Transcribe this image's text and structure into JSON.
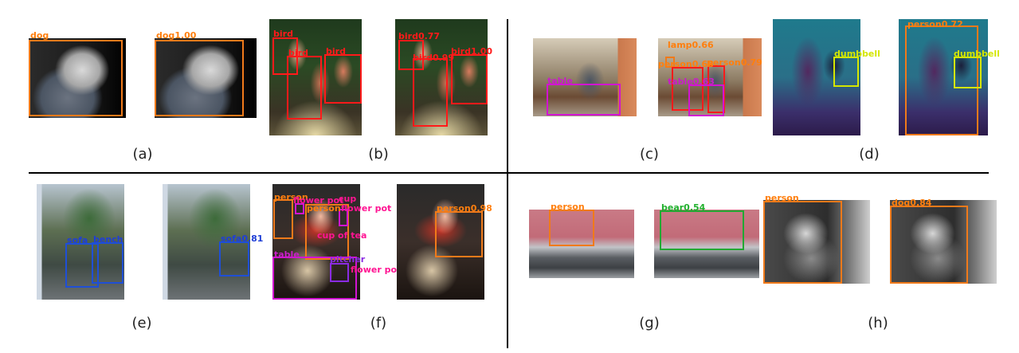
{
  "colors": {
    "orange": "#ff7f0e",
    "red": "#ff1a1a",
    "magenta": "#c81ec8",
    "pink": "#ff1493",
    "yellow": "#d4e600",
    "blue": "#1f3fd6",
    "green": "#22b02e",
    "purple": "#8a2be2",
    "boxorange": "#f07a1a",
    "boxred": "#ff1a1a",
    "boxmagenta": "#d214d2",
    "boxblue": "#1f4fd6",
    "boxgreen": "#22a832"
  },
  "captions": {
    "a": "(a)",
    "b": "(b)",
    "c": "(c)",
    "d": "(d)",
    "e": "(e)",
    "f": "(f)",
    "g": "(g)",
    "h": "(h)"
  },
  "labels": {
    "a1": "dog",
    "a2": "dog1.00",
    "b1a": "bird",
    "b1b": "bird",
    "b1c": "bird",
    "b2a": "bird0.77",
    "b2b": "bird0.99",
    "b2c": "bird1.00",
    "c1a": "table",
    "c2a": "lamp0.66",
    "c2b": "person0.68",
    "c2c": "person0.79",
    "c2d": "table0.63",
    "d1a": "dumbbell",
    "d2a": "person0.72",
    "d2b": "dumbbell",
    "e1a": "sofa",
    "e1b": "bench",
    "e2a": "sofa0.81",
    "f1a": "person",
    "f1b": "flower pot",
    "f1c": "person",
    "f1d": "flower pot",
    "f1e": "cup",
    "f1f": "cup of tea",
    "f1g": "table",
    "f1h": "pitcher",
    "f1i": "flower pot",
    "f2a": "person0.98",
    "g1a": "person",
    "g2a": "bear0.54",
    "h1a": "person",
    "h2a": "dog0.84"
  }
}
